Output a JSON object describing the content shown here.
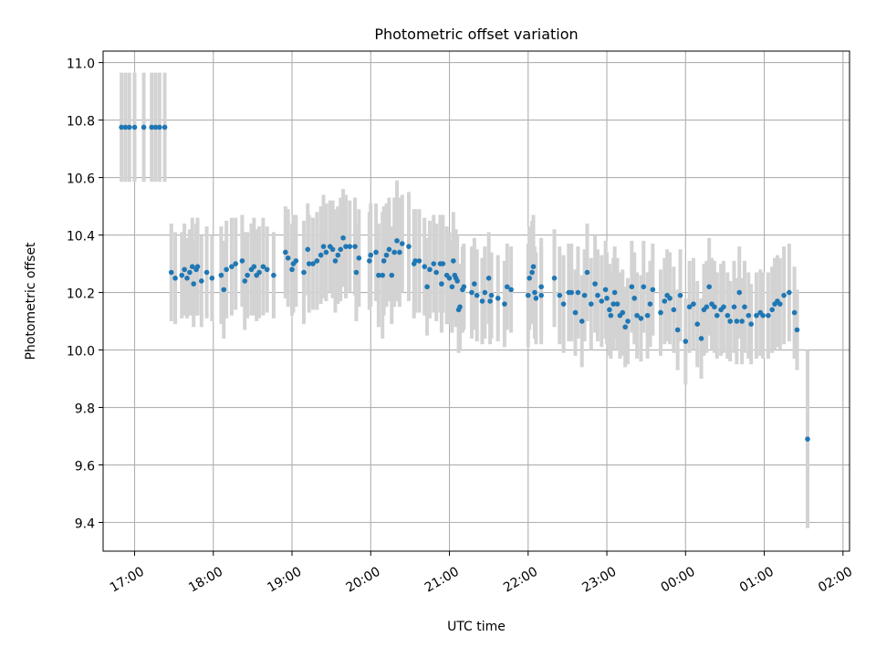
{
  "chart_data": {
    "type": "scatter",
    "title": "Photometric offset variation",
    "xlabel": "UTC time",
    "ylabel": "Photometric offset",
    "xlim": [
      "16:36",
      "26:05"
    ],
    "ylim": [
      9.3,
      11.04
    ],
    "grid": true,
    "x_ticks": [
      {
        "t": "17:00",
        "label": "17:00"
      },
      {
        "t": "18:00",
        "label": "18:00"
      },
      {
        "t": "19:00",
        "label": "19:00"
      },
      {
        "t": "20:00",
        "label": "20:00"
      },
      {
        "t": "21:00",
        "label": "21:00"
      },
      {
        "t": "22:00",
        "label": "22:00"
      },
      {
        "t": "23:00",
        "label": "23:00"
      },
      {
        "t": "24:00",
        "label": "00:00"
      },
      {
        "t": "25:00",
        "label": "01:00"
      },
      {
        "t": "26:00",
        "label": "02:00"
      }
    ],
    "y_ticks": [
      "9.4",
      "9.6",
      "9.8",
      "10.0",
      "10.2",
      "10.4",
      "10.6",
      "10.8",
      "11.0"
    ],
    "series": [
      {
        "marker_color": "#1f77b4",
        "errorbar_color": "#d3d3d3",
        "points": [
          [
            "16:50",
            10.775,
            0.19
          ],
          [
            "16:53",
            10.775,
            0.19
          ],
          [
            "16:56",
            10.775,
            0.19
          ],
          [
            "17:00",
            10.775,
            0.19
          ],
          [
            "17:07",
            10.775,
            0.19
          ],
          [
            "17:13",
            10.775,
            0.19
          ],
          [
            "17:16",
            10.775,
            0.19
          ],
          [
            "17:19",
            10.775,
            0.19
          ],
          [
            "17:23",
            10.775,
            0.19
          ],
          [
            "17:28",
            10.27,
            0.17
          ],
          [
            "17:31",
            10.25,
            0.16
          ],
          [
            "17:36",
            10.26,
            0.15
          ],
          [
            "17:38",
            10.28,
            0.16
          ],
          [
            "17:40",
            10.25,
            0.14
          ],
          [
            "17:42",
            10.27,
            0.15
          ],
          [
            "17:44",
            10.29,
            0.17
          ],
          [
            "17:45",
            10.23,
            0.15
          ],
          [
            "17:47",
            10.28,
            0.16
          ],
          [
            "17:48",
            10.29,
            0.17
          ],
          [
            "17:51",
            10.24,
            0.16
          ],
          [
            "17:55",
            10.27,
            0.16
          ],
          [
            "17:59",
            10.25,
            0.15
          ],
          [
            "18:06",
            10.26,
            0.17
          ],
          [
            "18:08",
            10.21,
            0.17
          ],
          [
            "18:10",
            10.28,
            0.17
          ],
          [
            "18:14",
            10.29,
            0.17
          ],
          [
            "18:17",
            10.3,
            0.16
          ],
          [
            "18:22",
            10.31,
            0.16
          ],
          [
            "18:24",
            10.24,
            0.17
          ],
          [
            "18:26",
            10.26,
            0.15
          ],
          [
            "18:29",
            10.28,
            0.16
          ],
          [
            "18:31",
            10.29,
            0.17
          ],
          [
            "18:33",
            10.26,
            0.16
          ],
          [
            "18:35",
            10.27,
            0.16
          ],
          [
            "18:38",
            10.29,
            0.17
          ],
          [
            "18:41",
            10.28,
            0.15
          ],
          [
            "18:46",
            10.26,
            0.15
          ],
          [
            "18:55",
            10.34,
            0.16
          ],
          [
            "18:57",
            10.32,
            0.17
          ],
          [
            "19:00",
            10.28,
            0.16
          ],
          [
            "19:01",
            10.3,
            0.17
          ],
          [
            "19:03",
            10.31,
            0.16
          ],
          [
            "19:09",
            10.27,
            0.18
          ],
          [
            "19:12",
            10.35,
            0.16
          ],
          [
            "19:13",
            10.3,
            0.17
          ],
          [
            "19:16",
            10.3,
            0.16
          ],
          [
            "19:19",
            10.31,
            0.17
          ],
          [
            "19:22",
            10.33,
            0.17
          ],
          [
            "19:24",
            10.36,
            0.18
          ],
          [
            "19:26",
            10.34,
            0.17
          ],
          [
            "19:29",
            10.36,
            0.16
          ],
          [
            "19:31",
            10.35,
            0.17
          ],
          [
            "19:33",
            10.31,
            0.18
          ],
          [
            "19:35",
            10.33,
            0.17
          ],
          [
            "19:37",
            10.35,
            0.18
          ],
          [
            "19:39",
            10.39,
            0.17
          ],
          [
            "19:41",
            10.36,
            0.18
          ],
          [
            "19:44",
            10.36,
            0.16
          ],
          [
            "19:48",
            10.36,
            0.17
          ],
          [
            "19:49",
            10.27,
            0.17
          ],
          [
            "19:51",
            10.32,
            0.17
          ],
          [
            "19:59",
            10.31,
            0.17
          ],
          [
            "20:00",
            10.33,
            0.18
          ],
          [
            "20:04",
            10.34,
            0.17
          ],
          [
            "20:06",
            10.26,
            0.18
          ],
          [
            "20:09",
            10.26,
            0.22
          ],
          [
            "20:10",
            10.31,
            0.19
          ],
          [
            "20:12",
            10.33,
            0.18
          ],
          [
            "20:14",
            10.35,
            0.18
          ],
          [
            "20:16",
            10.26,
            0.17
          ],
          [
            "20:18",
            10.34,
            0.19
          ],
          [
            "20:20",
            10.38,
            0.21
          ],
          [
            "20:22",
            10.34,
            0.19
          ],
          [
            "20:24",
            10.37,
            0.17
          ],
          [
            "20:29",
            10.36,
            0.19
          ],
          [
            "20:33",
            10.3,
            0.19
          ],
          [
            "20:34",
            10.31,
            0.18
          ],
          [
            "20:37",
            10.31,
            0.18
          ],
          [
            "20:41",
            10.29,
            0.17
          ],
          [
            "20:43",
            10.22,
            0.17
          ],
          [
            "20:45",
            10.28,
            0.17
          ],
          [
            "20:48",
            10.3,
            0.17
          ],
          [
            "20:50",
            10.27,
            0.17
          ],
          [
            "20:53",
            10.3,
            0.17
          ],
          [
            "20:54",
            10.23,
            0.17
          ],
          [
            "20:55",
            10.3,
            0.17
          ],
          [
            "20:58",
            10.26,
            0.17
          ],
          [
            "21:00",
            10.25,
            0.16
          ],
          [
            "21:02",
            10.22,
            0.16
          ],
          [
            "21:03",
            10.31,
            0.17
          ],
          [
            "21:04",
            10.26,
            0.16
          ],
          [
            "21:05",
            10.25,
            0.17
          ],
          [
            "21:06",
            10.24,
            0.16
          ],
          [
            "21:07",
            10.14,
            0.15
          ],
          [
            "21:08",
            10.15,
            0.15
          ],
          [
            "21:10",
            10.21,
            0.15
          ],
          [
            "21:11",
            10.22,
            0.15
          ],
          [
            "21:17",
            10.2,
            0.16
          ],
          [
            "21:19",
            10.23,
            0.16
          ],
          [
            "21:21",
            10.19,
            0.16
          ],
          [
            "21:25",
            10.17,
            0.15
          ],
          [
            "21:27",
            10.2,
            0.16
          ],
          [
            "21:30",
            10.25,
            0.16
          ],
          [
            "21:31",
            10.17,
            0.15
          ],
          [
            "21:32",
            10.19,
            0.15
          ],
          [
            "21:37",
            10.18,
            0.15
          ],
          [
            "21:42",
            10.16,
            0.15
          ],
          [
            "21:44",
            10.22,
            0.15
          ],
          [
            "21:47",
            10.21,
            0.15
          ],
          [
            "22:00",
            10.19,
            0.18
          ],
          [
            "22:01",
            10.25,
            0.18
          ],
          [
            "22:03",
            10.27,
            0.18
          ],
          [
            "22:04",
            10.29,
            0.18
          ],
          [
            "22:05",
            10.2,
            0.16
          ],
          [
            "22:06",
            10.18,
            0.16
          ],
          [
            "22:10",
            10.22,
            0.17
          ],
          [
            "22:10",
            10.19,
            0.17
          ],
          [
            "22:20",
            10.25,
            0.17
          ],
          [
            "22:24",
            10.19,
            0.17
          ],
          [
            "22:27",
            10.16,
            0.17
          ],
          [
            "22:31",
            10.2,
            0.17
          ],
          [
            "22:33",
            10.2,
            0.17
          ],
          [
            "22:36",
            10.13,
            0.15
          ],
          [
            "22:38",
            10.2,
            0.16
          ],
          [
            "22:41",
            10.1,
            0.16
          ],
          [
            "22:43",
            10.19,
            0.16
          ],
          [
            "22:45",
            10.27,
            0.17
          ],
          [
            "22:48",
            10.16,
            0.16
          ],
          [
            "22:51",
            10.23,
            0.17
          ],
          [
            "22:53",
            10.19,
            0.16
          ],
          [
            "22:56",
            10.17,
            0.16
          ],
          [
            "22:59",
            10.21,
            0.17
          ],
          [
            "23:00",
            10.18,
            0.16
          ],
          [
            "23:02",
            10.14,
            0.16
          ],
          [
            "23:03",
            10.12,
            0.15
          ],
          [
            "23:05",
            10.16,
            0.16
          ],
          [
            "23:06",
            10.2,
            0.16
          ],
          [
            "23:08",
            10.16,
            0.16
          ],
          [
            "23:10",
            10.12,
            0.15
          ],
          [
            "23:12",
            10.13,
            0.15
          ],
          [
            "23:14",
            10.08,
            0.14
          ],
          [
            "23:16",
            10.1,
            0.15
          ],
          [
            "23:19",
            10.22,
            0.16
          ],
          [
            "23:21",
            10.18,
            0.16
          ],
          [
            "23:23",
            10.12,
            0.15
          ],
          [
            "23:26",
            10.11,
            0.15
          ],
          [
            "23:28",
            10.22,
            0.16
          ],
          [
            "23:31",
            10.12,
            0.15
          ],
          [
            "23:33",
            10.16,
            0.15
          ],
          [
            "23:35",
            10.21,
            0.16
          ],
          [
            "23:41",
            10.13,
            0.15
          ],
          [
            "23:44",
            10.17,
            0.15
          ],
          [
            "23:46",
            10.19,
            0.16
          ],
          [
            "23:48",
            10.18,
            0.16
          ],
          [
            "23:51",
            10.14,
            0.15
          ],
          [
            "23:54",
            10.07,
            0.14
          ],
          [
            "23:56",
            10.19,
            0.16
          ],
          [
            "00:00",
            10.03,
            0.15
          ],
          [
            "00:03",
            10.15,
            0.16
          ],
          [
            "00:06",
            10.16,
            0.16
          ],
          [
            "00:09",
            10.09,
            0.15
          ],
          [
            "00:12",
            10.04,
            0.14
          ],
          [
            "00:14",
            10.14,
            0.16
          ],
          [
            "00:16",
            10.15,
            0.16
          ],
          [
            "00:18",
            10.22,
            0.17
          ],
          [
            "00:20",
            10.16,
            0.16
          ],
          [
            "00:22",
            10.15,
            0.16
          ],
          [
            "00:24",
            10.12,
            0.15
          ],
          [
            "00:27",
            10.14,
            0.16
          ],
          [
            "00:29",
            10.15,
            0.16
          ],
          [
            "00:32",
            10.12,
            0.15
          ],
          [
            "00:34",
            10.1,
            0.14
          ],
          [
            "00:37",
            10.15,
            0.16
          ],
          [
            "00:39",
            10.1,
            0.15
          ],
          [
            "00:41",
            10.2,
            0.16
          ],
          [
            "00:43",
            10.1,
            0.15
          ],
          [
            "00:45",
            10.15,
            0.16
          ],
          [
            "00:48",
            10.12,
            0.15
          ],
          [
            "00:50",
            10.09,
            0.14
          ],
          [
            "00:54",
            10.12,
            0.15
          ],
          [
            "00:57",
            10.13,
            0.15
          ],
          [
            "00:59",
            10.12,
            0.15
          ],
          [
            "01:03",
            10.12,
            0.15
          ],
          [
            "01:06",
            10.14,
            0.15
          ],
          [
            "01:08",
            10.16,
            0.16
          ],
          [
            "01:10",
            10.17,
            0.16
          ],
          [
            "01:12",
            10.16,
            0.16
          ],
          [
            "01:15",
            10.19,
            0.17
          ],
          [
            "01:19",
            10.2,
            0.17
          ],
          [
            "01:23",
            10.13,
            0.16
          ],
          [
            "01:25",
            10.07,
            0.14
          ],
          [
            "01:33",
            9.69,
            0.31
          ]
        ]
      }
    ]
  }
}
